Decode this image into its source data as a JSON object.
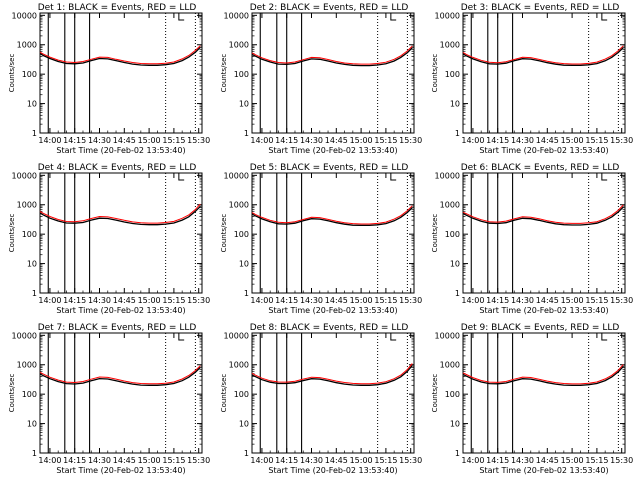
{
  "shared": {
    "x_ticks": [
      {
        "label": "14:00",
        "min": 0
      },
      {
        "label": "14:15",
        "min": 15
      },
      {
        "label": "14:30",
        "min": 30
      },
      {
        "label": "14:45",
        "min": 45
      },
      {
        "label": "15:00",
        "min": 60
      },
      {
        "label": "15:15",
        "min": 75
      },
      {
        "label": "15:30",
        "min": 90
      }
    ],
    "y_ticks": [
      "1",
      "10",
      "100",
      "1000",
      "10000"
    ],
    "ylabel": "Counts/sec",
    "xlabel": "Start Time (20-Feb-02 13:53:40)",
    "vertical_lines_min": [
      -1,
      9,
      15,
      24
    ],
    "dotted_lines_min": [
      70,
      88
    ],
    "corner_marks_min": [
      78,
      80
    ],
    "colors": {
      "events": "#000000",
      "lld": "#ff0000"
    }
  },
  "chart_data": [
    {
      "type": "line",
      "title": "Det 1: BLACK = Events, RED = LLD",
      "xlim": [
        -6,
        92
      ],
      "ylim": [
        1,
        12000
      ],
      "yscale": "log",
      "x": [
        -6,
        -4,
        0,
        5,
        10,
        15,
        20,
        25,
        30,
        35,
        40,
        45,
        50,
        55,
        60,
        65,
        70,
        75,
        80,
        84,
        88,
        91
      ],
      "series": [
        {
          "name": "Events",
          "values": [
            500,
            430,
            340,
            270,
            230,
            225,
            240,
            290,
            340,
            330,
            290,
            250,
            220,
            205,
            200,
            200,
            210,
            230,
            290,
            380,
            560,
            820
          ]
        },
        {
          "name": "LLD",
          "values": [
            560,
            480,
            380,
            300,
            260,
            250,
            270,
            320,
            380,
            370,
            320,
            280,
            250,
            230,
            225,
            225,
            235,
            260,
            330,
            430,
            640,
            930
          ]
        }
      ]
    },
    {
      "type": "line",
      "title": "Det 2: BLACK = Events, RED = LLD",
      "xlim": [
        -6,
        92
      ],
      "ylim": [
        1,
        12000
      ],
      "yscale": "log",
      "x": [
        -6,
        -4,
        0,
        5,
        10,
        15,
        20,
        25,
        30,
        35,
        40,
        45,
        50,
        55,
        60,
        65,
        70,
        75,
        80,
        84,
        88,
        91
      ],
      "series": [
        {
          "name": "Events",
          "values": [
            470,
            410,
            320,
            260,
            220,
            215,
            230,
            280,
            330,
            320,
            280,
            240,
            215,
            200,
            195,
            195,
            205,
            225,
            280,
            370,
            540,
            790
          ]
        },
        {
          "name": "LLD",
          "values": [
            530,
            460,
            360,
            290,
            250,
            240,
            260,
            310,
            370,
            360,
            315,
            270,
            240,
            225,
            220,
            220,
            230,
            255,
            320,
            420,
            620,
            900
          ]
        }
      ]
    },
    {
      "type": "line",
      "title": "Det 3: BLACK = Events, RED = LLD",
      "xlim": [
        -6,
        92
      ],
      "ylim": [
        1,
        12000
      ],
      "yscale": "log",
      "x": [
        -6,
        -4,
        0,
        5,
        10,
        15,
        20,
        25,
        30,
        35,
        40,
        45,
        50,
        55,
        60,
        65,
        70,
        75,
        80,
        84,
        88,
        91
      ],
      "series": [
        {
          "name": "Events",
          "values": [
            490,
            420,
            330,
            265,
            225,
            220,
            235,
            285,
            335,
            325,
            285,
            245,
            218,
            202,
            198,
            198,
            208,
            228,
            285,
            375,
            550,
            800
          ]
        },
        {
          "name": "LLD",
          "values": [
            550,
            470,
            370,
            295,
            255,
            245,
            265,
            315,
            375,
            365,
            318,
            275,
            245,
            228,
            222,
            222,
            232,
            258,
            325,
            425,
            630,
            920
          ]
        }
      ]
    },
    {
      "type": "line",
      "title": "Det 4: BLACK = Events, RED = LLD",
      "xlim": [
        -6,
        92
      ],
      "ylim": [
        1,
        12000
      ],
      "yscale": "log",
      "x": [
        -6,
        -4,
        0,
        5,
        10,
        15,
        20,
        25,
        30,
        35,
        40,
        45,
        50,
        55,
        60,
        65,
        70,
        75,
        80,
        84,
        88,
        91
      ],
      "series": [
        {
          "name": "Events",
          "values": [
            520,
            450,
            350,
            280,
            240,
            235,
            250,
            300,
            350,
            340,
            300,
            260,
            230,
            215,
            210,
            210,
            220,
            240,
            300,
            390,
            600,
            880
          ]
        },
        {
          "name": "LLD",
          "values": [
            590,
            510,
            400,
            315,
            270,
            265,
            285,
            340,
            400,
            385,
            340,
            295,
            262,
            245,
            238,
            238,
            250,
            272,
            345,
            450,
            690,
            1050
          ]
        }
      ]
    },
    {
      "type": "line",
      "title": "Det 5: BLACK = Events, RED = LLD",
      "xlim": [
        -6,
        92
      ],
      "ylim": [
        1,
        12000
      ],
      "yscale": "log",
      "x": [
        -6,
        -4,
        0,
        5,
        10,
        15,
        20,
        25,
        30,
        35,
        40,
        45,
        50,
        55,
        60,
        65,
        70,
        75,
        80,
        84,
        88,
        91
      ],
      "series": [
        {
          "name": "Events",
          "values": [
            480,
            420,
            330,
            265,
            225,
            220,
            235,
            285,
            335,
            325,
            285,
            245,
            218,
            202,
            198,
            198,
            208,
            228,
            285,
            375,
            550,
            800
          ]
        },
        {
          "name": "LLD",
          "values": [
            540,
            470,
            370,
            295,
            255,
            245,
            265,
            315,
            375,
            365,
            318,
            275,
            245,
            228,
            222,
            222,
            232,
            258,
            325,
            425,
            630,
            920
          ]
        }
      ]
    },
    {
      "type": "line",
      "title": "Det 6: BLACK = Events, RED = LLD",
      "xlim": [
        -6,
        92
      ],
      "ylim": [
        1,
        12000
      ],
      "yscale": "log",
      "x": [
        -6,
        -4,
        0,
        5,
        10,
        15,
        20,
        25,
        30,
        35,
        40,
        45,
        50,
        55,
        60,
        65,
        70,
        75,
        80,
        84,
        88,
        91
      ],
      "series": [
        {
          "name": "Events",
          "values": [
            500,
            440,
            345,
            275,
            235,
            230,
            245,
            295,
            345,
            335,
            295,
            255,
            225,
            210,
            205,
            205,
            215,
            235,
            295,
            385,
            570,
            840
          ]
        },
        {
          "name": "LLD",
          "values": [
            560,
            495,
            390,
            310,
            265,
            258,
            278,
            330,
            390,
            378,
            332,
            288,
            255,
            238,
            232,
            232,
            243,
            265,
            335,
            440,
            660,
            980
          ]
        }
      ]
    },
    {
      "type": "line",
      "title": "Det 7: BLACK = Events, RED = LLD",
      "xlim": [
        -6,
        92
      ],
      "ylim": [
        1,
        12000
      ],
      "yscale": "log",
      "x": [
        -6,
        -4,
        0,
        5,
        10,
        15,
        20,
        25,
        30,
        35,
        40,
        45,
        50,
        55,
        60,
        65,
        70,
        75,
        80,
        84,
        88,
        91
      ],
      "series": [
        {
          "name": "Events",
          "values": [
            490,
            425,
            335,
            268,
            228,
            222,
            238,
            288,
            338,
            328,
            288,
            248,
            220,
            204,
            200,
            200,
            210,
            230,
            288,
            378,
            556,
            810
          ]
        },
        {
          "name": "LLD",
          "values": [
            555,
            480,
            378,
            300,
            258,
            250,
            270,
            322,
            382,
            370,
            325,
            280,
            248,
            230,
            225,
            225,
            236,
            260,
            328,
            430,
            636,
            930
          ]
        }
      ]
    },
    {
      "type": "line",
      "title": "Det 8: BLACK = Events, RED = LLD",
      "xlim": [
        -6,
        92
      ],
      "ylim": [
        1,
        12000
      ],
      "yscale": "log",
      "x": [
        -6,
        -4,
        0,
        5,
        10,
        15,
        20,
        25,
        30,
        35,
        40,
        45,
        50,
        55,
        60,
        65,
        70,
        75,
        80,
        84,
        88,
        91
      ],
      "series": [
        {
          "name": "Events",
          "values": [
            450,
            395,
            310,
            255,
            230,
            230,
            245,
            290,
            335,
            325,
            285,
            245,
            220,
            205,
            200,
            200,
            210,
            235,
            295,
            390,
            600,
            950
          ]
        },
        {
          "name": "LLD",
          "values": [
            510,
            445,
            350,
            285,
            260,
            258,
            275,
            325,
            378,
            365,
            320,
            278,
            250,
            232,
            226,
            226,
            238,
            265,
            335,
            445,
            690,
            1100
          ]
        }
      ]
    },
    {
      "type": "line",
      "title": "Det 9: BLACK = Events, RED = LLD",
      "xlim": [
        -6,
        92
      ],
      "ylim": [
        1,
        12000
      ],
      "yscale": "log",
      "x": [
        -6,
        -4,
        0,
        5,
        10,
        15,
        20,
        25,
        30,
        35,
        40,
        45,
        50,
        55,
        60,
        65,
        70,
        75,
        80,
        84,
        88,
        91
      ],
      "series": [
        {
          "name": "Events",
          "values": [
            470,
            410,
            322,
            260,
            228,
            225,
            240,
            288,
            336,
            326,
            286,
            246,
            219,
            203,
            199,
            199,
            209,
            230,
            290,
            382,
            575,
            880
          ]
        },
        {
          "name": "LLD",
          "values": [
            530,
            465,
            365,
            292,
            258,
            252,
            270,
            322,
            380,
            368,
            322,
            279,
            248,
            230,
            224,
            224,
            235,
            260,
            330,
            438,
            660,
            1010
          ]
        }
      ]
    }
  ]
}
